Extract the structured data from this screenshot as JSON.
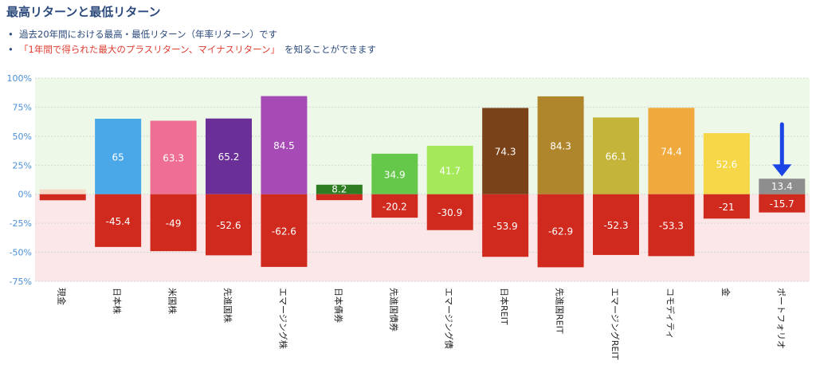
{
  "header": {
    "title": "最高リターンと最低リターン",
    "bullet1": "過去20年間における最高・最低リターン（年率リターン）です",
    "bullet2_highlight": "「1年間で得られた最大のプラスリターン、マイナスリターン」",
    "bullet2_rest": "を知ることができます"
  },
  "colors": {
    "positive_bg": "#edf8e8",
    "negative_bg": "#fbe7e7",
    "negative_bar": "#d02a1e",
    "axis_label": "#4a90d9",
    "arrow": "#1a44e6"
  },
  "chart_data": {
    "type": "bar",
    "stacking": "overlapping positive/negative bars per category",
    "ylim": [
      -75,
      100
    ],
    "yticks": [
      "100%",
      "75%",
      "50%",
      "25%",
      "0%",
      "-25%",
      "-50%",
      "-75%"
    ],
    "categories": [
      "現金",
      "日本株",
      "米国株",
      "先進国株",
      "エマージング株",
      "日本債券",
      "先進国債券",
      "エマージング債",
      "日本REIT",
      "先進国REIT",
      "エマージングREIT",
      "コモディティ",
      "金",
      "ポートフォリオ"
    ],
    "series": [
      {
        "values": [
          4.2,
          65,
          63.3,
          65.2,
          84.5,
          8.2,
          34.9,
          41.7,
          74.3,
          84.3,
          66.1,
          74.4,
          52.6,
          13.4
        ],
        "labels": [
          "",
          "65",
          "63.3",
          "65.2",
          "84.5",
          "8.2",
          "34.9",
          "41.7",
          "74.3",
          "84.3",
          "66.1",
          "74.4",
          "52.6",
          "13.4"
        ],
        "colors": [
          "#f6d9c6",
          "#4aa8e8",
          "#ee6e94",
          "#6b2f98",
          "#a64ab5",
          "#2e7d22",
          "#66c84b",
          "#a5e85a",
          "#7a4219",
          "#b0862c",
          "#c4b43a",
          "#f0a93c",
          "#f6d748",
          "#8e8e8e"
        ]
      },
      {
        "values": [
          -5.2,
          -45.4,
          -49,
          -52.6,
          -62.6,
          -5.1,
          -20.2,
          -30.9,
          -53.9,
          -62.9,
          -52.3,
          -53.3,
          -21,
          -15.7
        ],
        "labels": [
          "",
          "-45.4",
          "-49",
          "-52.6",
          "-62.6",
          "",
          "-20.2",
          "-30.9",
          "-53.9",
          "-62.9",
          "-52.3",
          "-53.3",
          "-21",
          "-15.7"
        ]
      }
    ],
    "annotation": {
      "type": "arrow",
      "category": "ポートフォリオ",
      "direction": "down"
    }
  }
}
